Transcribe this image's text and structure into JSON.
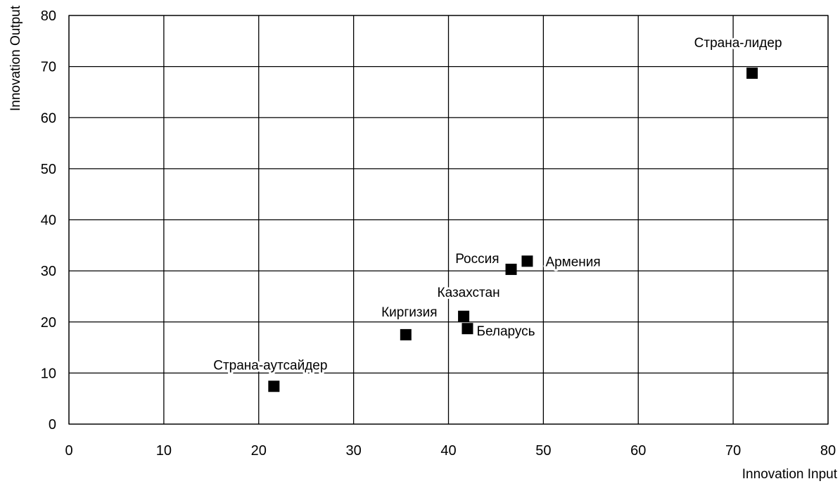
{
  "chart_data": {
    "type": "scatter",
    "title": "",
    "xlabel": "Innovation Input",
    "ylabel": "Innovation Output",
    "xlim": [
      0,
      80
    ],
    "ylim": [
      0,
      80
    ],
    "x_ticks": [
      0,
      10,
      20,
      30,
      40,
      50,
      60,
      70,
      80
    ],
    "y_ticks": [
      0,
      10,
      20,
      30,
      40,
      50,
      60,
      70,
      80
    ],
    "grid": true,
    "legend": "none",
    "marker": "square",
    "marker_color": "#000000",
    "points": [
      {
        "label": "Страна-лидер",
        "x": 72.0,
        "y": 68.7
      },
      {
        "label": "Армения",
        "x": 48.3,
        "y": 31.9
      },
      {
        "label": "Россия",
        "x": 46.6,
        "y": 30.3
      },
      {
        "label": "Казахстан",
        "x": 41.6,
        "y": 21.1
      },
      {
        "label": "Беларусь",
        "x": 42.0,
        "y": 18.7
      },
      {
        "label": "Киргизия",
        "x": 35.5,
        "y": 17.5
      },
      {
        "label": "Страна-аутсайдер",
        "x": 21.6,
        "y": 7.4
      }
    ]
  }
}
